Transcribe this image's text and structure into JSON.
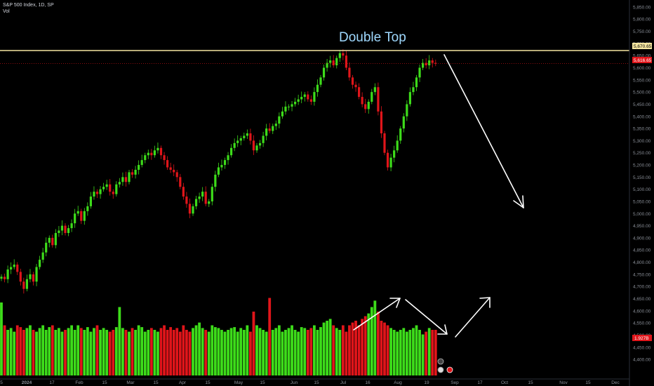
{
  "header": {
    "symbol_line": "S&P 500 Index, 1D, SP",
    "volume_label": "Vol"
  },
  "annotations": {
    "double_top_label": "Double Top"
  },
  "colors": {
    "background": "#000000",
    "up": "#3ddc1a",
    "down": "#e0151a",
    "resistance_line": "#f5e6a0",
    "arrows": "#ffffff",
    "title_text": "#9fd9ff",
    "axis_text": "#8a8f98",
    "price_tag_resistance": "#f5e6a0",
    "price_tag_last": "#e0151a"
  },
  "chart_data": {
    "type": "candlestick",
    "symbol": "S&P 500 Index",
    "interval": "1D",
    "exchange": "SP",
    "y_ticks": [
      "5,850.00",
      "5,800.00",
      "5,750.00",
      "5,700.00",
      "5,650.00",
      "5,600.00",
      "5,550.00",
      "5,500.00",
      "5,450.00",
      "5,400.00",
      "5,350.00",
      "5,300.00",
      "5,250.00",
      "5,200.00",
      "5,150.00",
      "5,100.00",
      "5,050.00",
      "5,000.00",
      "4,950.00",
      "4,900.00",
      "4,850.00",
      "4,800.00",
      "4,750.00",
      "4,700.00",
      "4,650.00",
      "4,600.00",
      "4,550.00",
      "4,500.00",
      "4,450.00",
      "4,400.00"
    ],
    "x_ticks": [
      "5",
      "2024",
      "17",
      "Feb",
      "15",
      "Mar",
      "15",
      "Apr",
      "15",
      "May",
      "15",
      "Jun",
      "15",
      "Jul",
      "16",
      "Aug",
      "19",
      "Sep",
      "17",
      "Oct",
      "15",
      "Nov",
      "15",
      "Dec"
    ],
    "ylim": [
      4380,
      5870
    ],
    "resistance_level": 5670.65,
    "resistance_label": "5,670.65",
    "last_price": 5616.65,
    "last_price_label": "5,616.65",
    "last_volume_label": "1.927B",
    "closes": [
      4740,
      4730,
      4770,
      4780,
      4790,
      4760,
      4720,
      4690,
      4730,
      4750,
      4720,
      4780,
      4810,
      4840,
      4880,
      4900,
      4870,
      4920,
      4930,
      4950,
      4920,
      4940,
      4960,
      5000,
      5010,
      4970,
      5010,
      5030,
      5070,
      5090,
      5080,
      5100,
      5110,
      5120,
      5090,
      5080,
      5120,
      5130,
      5150,
      5130,
      5170,
      5160,
      5180,
      5200,
      5220,
      5240,
      5250,
      5240,
      5260,
      5270,
      5240,
      5220,
      5190,
      5180,
      5170,
      5150,
      5110,
      5070,
      5040,
      5000,
      5030,
      5060,
      5070,
      5090,
      5040,
      5050,
      5110,
      5160,
      5190,
      5200,
      5220,
      5240,
      5270,
      5290,
      5300,
      5310,
      5320,
      5330,
      5300,
      5260,
      5280,
      5290,
      5320,
      5350,
      5340,
      5360,
      5370,
      5400,
      5420,
      5440,
      5440,
      5450,
      5460,
      5470,
      5480,
      5490,
      5470,
      5460,
      5500,
      5530,
      5560,
      5600,
      5620,
      5630,
      5610,
      5640,
      5660,
      5650,
      5600,
      5560,
      5530,
      5520,
      5480,
      5450,
      5430,
      5460,
      5500,
      5520,
      5420,
      5330,
      5250,
      5190,
      5230,
      5260,
      5300,
      5350,
      5400,
      5450,
      5500,
      5520,
      5560,
      5600,
      5620,
      5610,
      5630,
      5620,
      5616.65
    ],
    "volumes": [
      80,
      55,
      50,
      52,
      48,
      55,
      53,
      50,
      52,
      55,
      50,
      48,
      52,
      55,
      50,
      53,
      55,
      50,
      52,
      48,
      50,
      52,
      55,
      50,
      55,
      52,
      50,
      53,
      48,
      52,
      55,
      50,
      52,
      50,
      48,
      50,
      53,
      75,
      52,
      50,
      48,
      52,
      50,
      55,
      53,
      48,
      50,
      52,
      50,
      48,
      52,
      55,
      50,
      53,
      50,
      52,
      48,
      55,
      50,
      48,
      52,
      55,
      58,
      52,
      50,
      48,
      55,
      53,
      52,
      50,
      48,
      50,
      52,
      53,
      48,
      52,
      50,
      55,
      48,
      70,
      55,
      52,
      50,
      48,
      85,
      50,
      52,
      55,
      48,
      50,
      52,
      55,
      50,
      48,
      53,
      52,
      50,
      52,
      55,
      50,
      53,
      58,
      60,
      62,
      55,
      52,
      50,
      55,
      48,
      55,
      58,
      60,
      55,
      62,
      65,
      68,
      75,
      82,
      70,
      60,
      58,
      55,
      52,
      50,
      48,
      50,
      52,
      48,
      50,
      52,
      55,
      50,
      45,
      48,
      52,
      50,
      50
    ],
    "volume_scale_max": 100
  },
  "price_axis_badges": {
    "resistance": "5,670.65",
    "last": "5,616.65",
    "volume": "1.927B"
  }
}
